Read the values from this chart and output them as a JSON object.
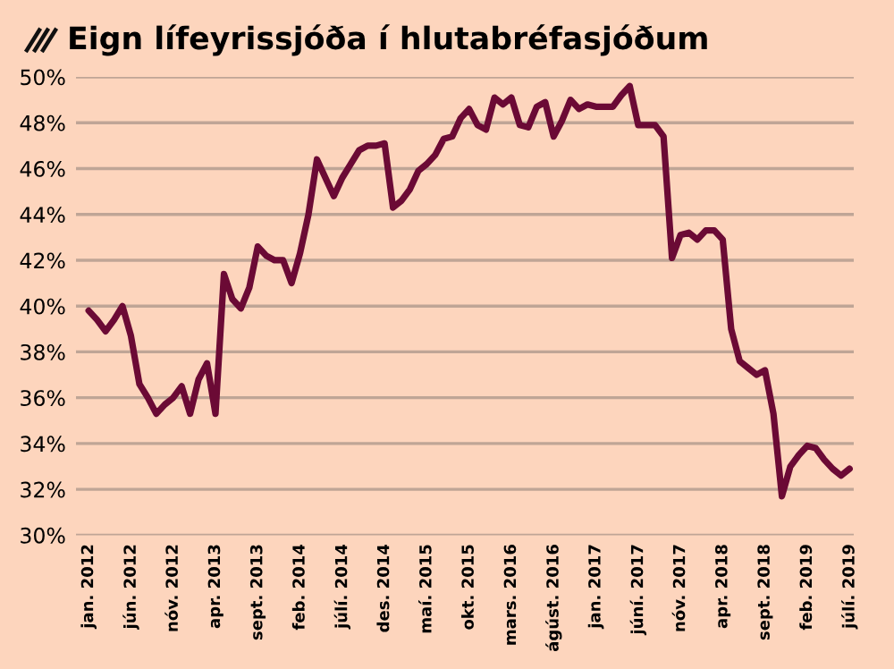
{
  "chart_data": {
    "type": "line",
    "title": "Eign lífeyrissjóða í hlutabréfasjóðum",
    "categories": [
      "jan. 2012",
      null,
      null,
      null,
      null,
      "jún. 2012",
      null,
      null,
      null,
      null,
      "nóv. 2012",
      null,
      null,
      null,
      null,
      "apr. 2013",
      null,
      null,
      null,
      null,
      "sept. 2013",
      null,
      null,
      null,
      null,
      "feb. 2014",
      null,
      null,
      null,
      null,
      "júlí. 2014",
      null,
      null,
      null,
      null,
      "des. 2014",
      null,
      null,
      null,
      null,
      "maí. 2015",
      null,
      null,
      null,
      null,
      "okt. 2015",
      null,
      null,
      null,
      null,
      "mars. 2016",
      null,
      null,
      null,
      null,
      "ágúst. 2016",
      null,
      null,
      null,
      null,
      "jan. 2017",
      null,
      null,
      null,
      null,
      "júní. 2017",
      null,
      null,
      null,
      null,
      "nóv. 2017",
      null,
      null,
      null,
      null,
      "apr. 2018",
      null,
      null,
      null,
      null,
      "sept. 2018",
      null,
      null,
      null,
      null,
      "feb. 2019",
      null,
      null,
      null,
      null,
      "júlí. 2019"
    ],
    "series": [
      {
        "color": "#6b0a35",
        "values": [
          39.8,
          39.4,
          38.9,
          39.4,
          40.0,
          38.7,
          36.6,
          36.0,
          35.3,
          35.7,
          36.0,
          36.5,
          35.3,
          36.8,
          37.5,
          35.3,
          41.4,
          40.3,
          39.9,
          40.8,
          42.6,
          42.2,
          42.0,
          42.0,
          41.0,
          42.3,
          44.0,
          46.4,
          45.6,
          44.8,
          45.6,
          46.2,
          46.8,
          47.0,
          47.0,
          47.1,
          44.3,
          44.6,
          45.1,
          45.9,
          46.2,
          46.6,
          47.3,
          47.4,
          48.2,
          48.6,
          47.9,
          47.7,
          49.1,
          48.8,
          49.1,
          47.9,
          47.8,
          48.7,
          48.9,
          47.4,
          48.1,
          49.0,
          48.6,
          48.8,
          48.7,
          48.7,
          48.7,
          49.2,
          49.6,
          47.9,
          47.9,
          47.9,
          47.4,
          42.1,
          43.1,
          43.2,
          42.9,
          43.3,
          43.3,
          42.9,
          39.0,
          37.6,
          37.3,
          37.0,
          37.2,
          35.3,
          31.7,
          33.0,
          33.5,
          33.9,
          33.8,
          33.3,
          32.9,
          32.6,
          32.9
        ]
      }
    ],
    "ylim": [
      30,
      50
    ],
    "yticks": [
      {
        "value": 30,
        "label": "30%"
      },
      {
        "value": 32,
        "label": "32%"
      },
      {
        "value": 34,
        "label": "34%"
      },
      {
        "value": 36,
        "label": "36%"
      },
      {
        "value": 38,
        "label": "38%"
      },
      {
        "value": 40,
        "label": "40%"
      },
      {
        "value": 42,
        "label": "42%"
      },
      {
        "value": 44,
        "label": "44%"
      },
      {
        "value": 46,
        "label": "46%"
      },
      {
        "value": 48,
        "label": "48%"
      },
      {
        "value": 50,
        "label": "50%"
      }
    ],
    "grid": "y",
    "legend": false,
    "marker": "none",
    "line_style": "solid"
  }
}
